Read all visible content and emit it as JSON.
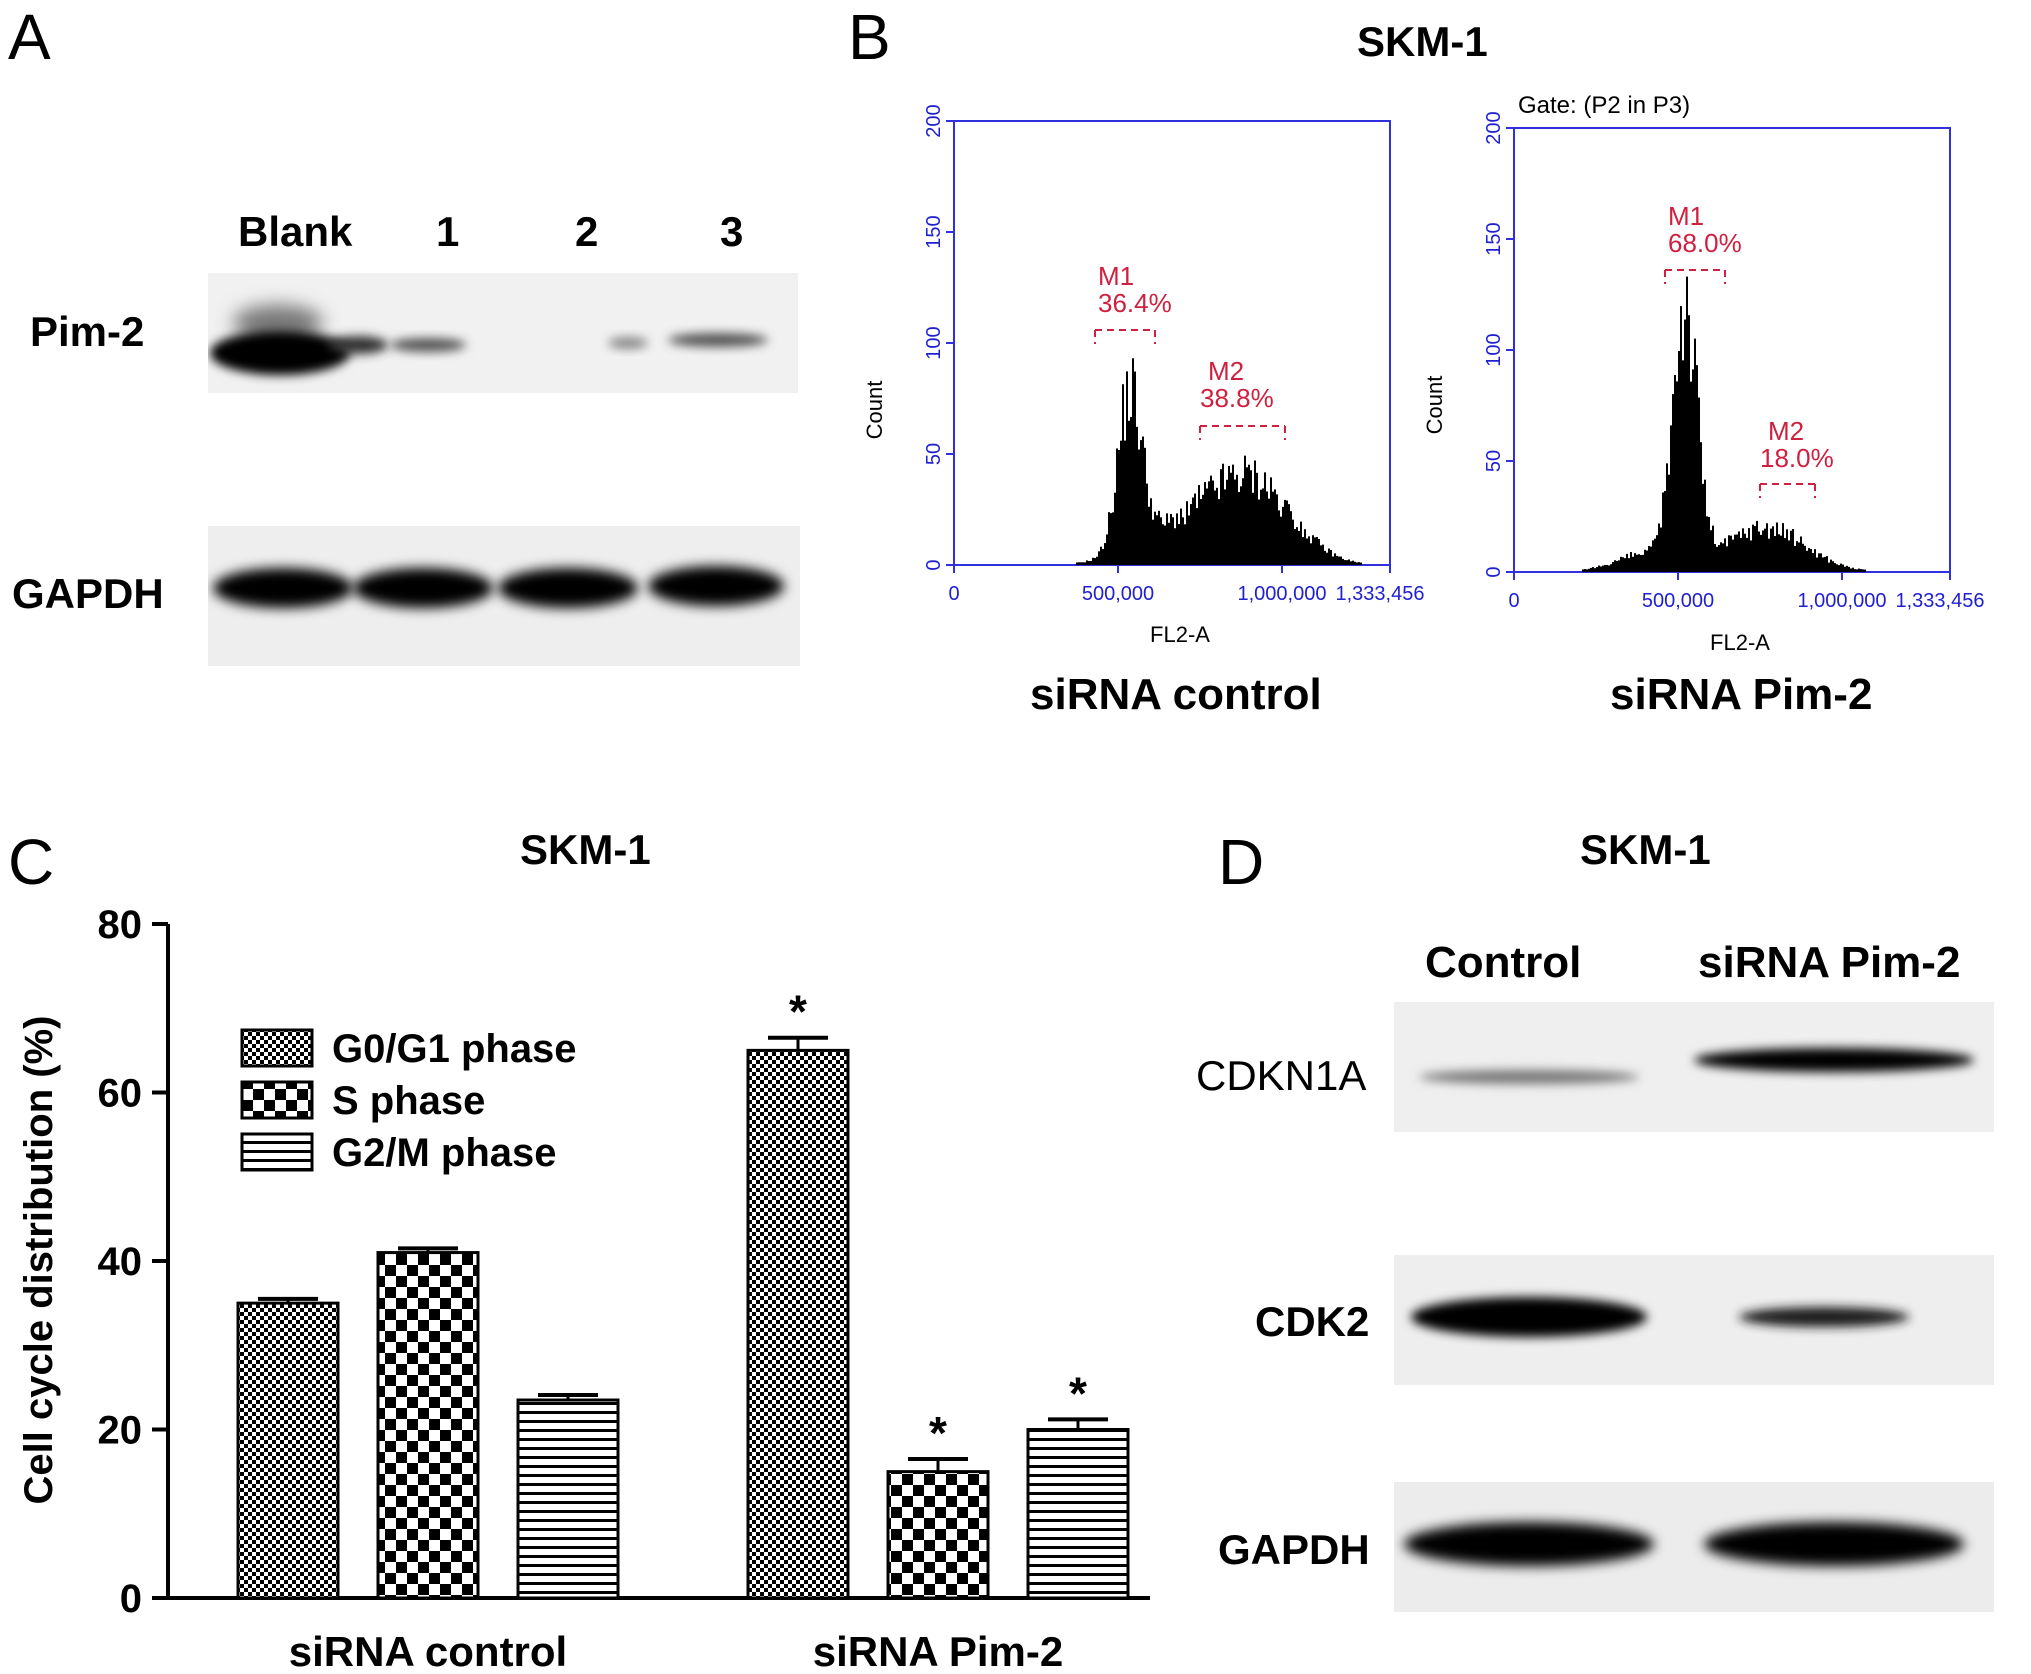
{
  "panel_a": {
    "letter": "A",
    "lanes": [
      "Blank",
      "1",
      "2",
      "3"
    ],
    "rows": [
      "Pim-2",
      "GAPDH"
    ]
  },
  "panel_b": {
    "letter": "B",
    "title": "SKM-1",
    "histograms": [
      {
        "caption": "siRNA control",
        "gate": "",
        "xlabel": "FL2-A",
        "ylabel": "Count",
        "x_ticks": [
          "0",
          "500,000",
          "1,000,000",
          "1,333,456"
        ],
        "y_ticks": [
          "0",
          "50",
          "100",
          "150",
          "200"
        ],
        "m1": {
          "label": "M1",
          "pct": "36.4%"
        },
        "m2": {
          "label": "M2",
          "pct": "38.8%"
        }
      },
      {
        "caption": "siRNA Pim-2",
        "gate": "Gate: (P2 in P3)",
        "xlabel": "FL2-A",
        "ylabel": "Count",
        "x_ticks": [
          "0",
          "500,000",
          "1,000,000",
          "1,333,456"
        ],
        "y_ticks": [
          "0",
          "50",
          "100",
          "150",
          "200"
        ],
        "m1": {
          "label": "M1",
          "pct": "68.0%"
        },
        "m2": {
          "label": "M2",
          "pct": "18.0%"
        }
      }
    ]
  },
  "chart_data": {
    "type": "bar",
    "panel_letter": "C",
    "title": "SKM-1",
    "ylabel": "Cell cycle distribution (%)",
    "xlabel": "",
    "ylim": [
      0,
      80
    ],
    "yticks": [
      "0",
      "20",
      "40",
      "60",
      "80"
    ],
    "categories": [
      "siRNA control",
      "siRNA Pim-2"
    ],
    "series": [
      {
        "name": "G0/G1 phase",
        "pattern": "fine-check",
        "values": [
          35,
          65
        ],
        "errors": [
          0.5,
          1.5
        ],
        "significant": [
          false,
          true
        ]
      },
      {
        "name": "S phase",
        "pattern": "coarse-check",
        "values": [
          41,
          15
        ],
        "errors": [
          0.5,
          1.5
        ],
        "significant": [
          false,
          true
        ]
      },
      {
        "name": "G2/M phase",
        "pattern": "horizontal-lines",
        "values": [
          23.5,
          20
        ],
        "errors": [
          0.6,
          1.2
        ],
        "significant": [
          false,
          true
        ]
      }
    ],
    "significance_mark": "*",
    "legend": "upper-left"
  },
  "panel_d": {
    "letter": "D",
    "title": "SKM-1",
    "lanes": [
      "Control",
      "siRNA Pim-2"
    ],
    "rows": [
      "CDKN1A",
      "CDK2",
      "GAPDH"
    ]
  }
}
